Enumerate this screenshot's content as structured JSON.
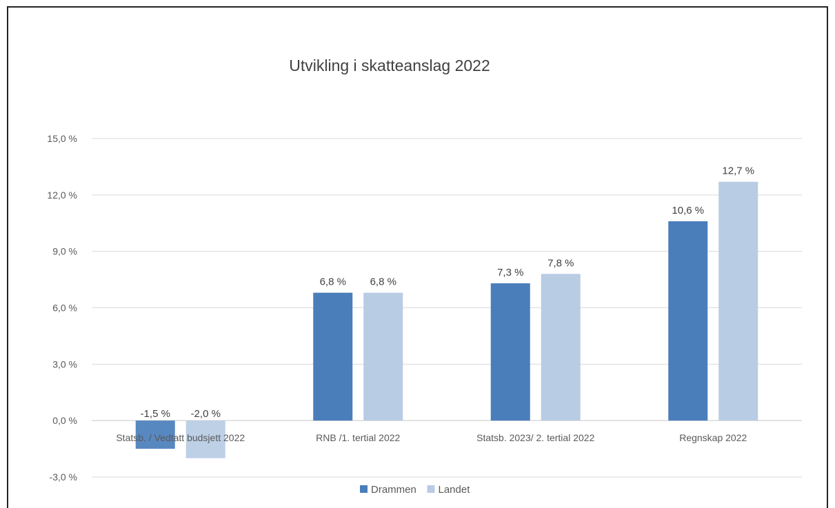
{
  "chart_data": {
    "type": "bar",
    "title": "Utvikling i skatteanslag 2022",
    "categories": [
      "Statsb. / Vedtatt budsjett 2022",
      "RNB /1. tertial 2022",
      "Statsb. 2023/ 2. tertial 2022",
      "Regnskap 2022"
    ],
    "series": [
      {
        "name": "Drammen",
        "values": [
          -1.5,
          6.8,
          7.3,
          10.6
        ],
        "labels": [
          "-1,5 %",
          "6,8 %",
          "7,3 %",
          "10,6 %"
        ],
        "color": "#4a7ebb"
      },
      {
        "name": "Landet",
        "values": [
          -2.0,
          6.8,
          7.8,
          12.7
        ],
        "labels": [
          "-2,0 %",
          "6,8 %",
          "7,8 %",
          "12,7 %"
        ],
        "color": "#b8cce4"
      }
    ],
    "ylim": [
      -3.0,
      15.0
    ],
    "yticks": [
      -3.0,
      0.0,
      3.0,
      6.0,
      9.0,
      12.0,
      15.0
    ],
    "ytick_labels": [
      "-3,0 %",
      "0,0 %",
      "3,0 %",
      "6,0 %",
      "9,0 %",
      "12,0 %",
      "15,0 %"
    ],
    "grid": true,
    "legend_position": "bottom"
  }
}
